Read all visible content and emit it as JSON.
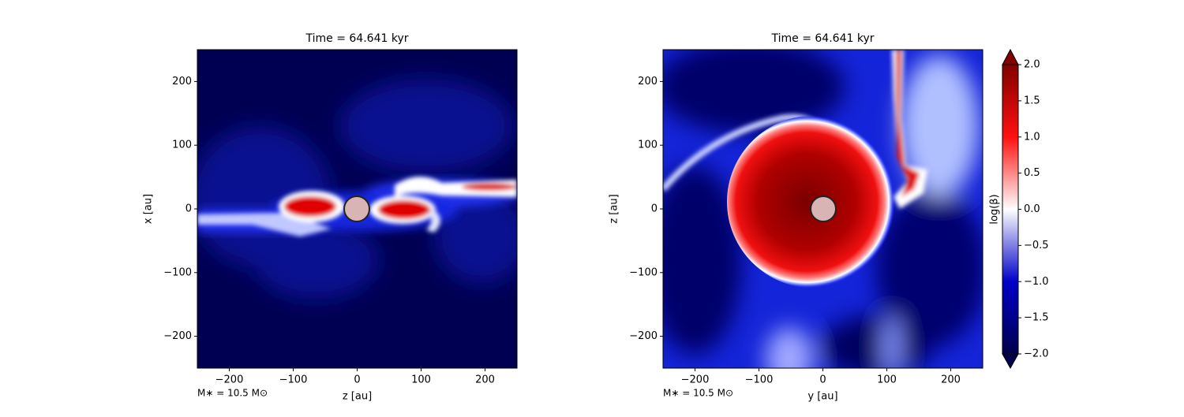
{
  "chart_data": [
    {
      "type": "heatmap",
      "title": "Time = 64.641 kyr",
      "xlabel": "z [au]",
      "ylabel": "x [au]",
      "annotation": "M∗ = 10.5 M⊙",
      "xlim": [
        -250,
        250
      ],
      "ylim": [
        -250,
        250
      ],
      "xticks": [
        {
          "value": -200,
          "label": "−200"
        },
        {
          "value": -100,
          "label": "−100"
        },
        0,
        100,
        200
      ],
      "yticks": [
        {
          "value": -200,
          "label": "−200"
        },
        {
          "value": -100,
          "label": "−100"
        },
        0,
        100,
        200
      ]
    },
    {
      "type": "heatmap",
      "title": "Time = 64.641 kyr",
      "xlabel": "y [au]",
      "ylabel": "z [au]",
      "annotation": "M∗ = 10.5 M⊙",
      "xlim": [
        -250,
        250
      ],
      "ylim": [
        -250,
        250
      ],
      "xticks": [
        {
          "value": -200,
          "label": "−200"
        },
        {
          "value": -100,
          "label": "−100"
        },
        0,
        100,
        200
      ],
      "yticks": [
        {
          "value": -200,
          "label": "−200"
        },
        {
          "value": -100,
          "label": "−100"
        },
        0,
        100,
        200
      ],
      "colorbar": {
        "label": "log(β)",
        "lim": [
          -2,
          2
        ],
        "ticks": [
          {
            "value": -2,
            "label": "−2.0"
          },
          {
            "value": -1.5,
            "label": "−1.5"
          },
          {
            "value": -1,
            "label": "−1.0"
          },
          {
            "value": -0.5,
            "label": "−0.5"
          },
          {
            "value": 0,
            "label": "0.0"
          },
          {
            "value": 0.5,
            "label": "0.5"
          },
          {
            "value": 1,
            "label": "1.0"
          },
          {
            "value": 1.5,
            "label": "1.5"
          },
          {
            "value": 2,
            "label": "2.0"
          }
        ]
      }
    }
  ]
}
